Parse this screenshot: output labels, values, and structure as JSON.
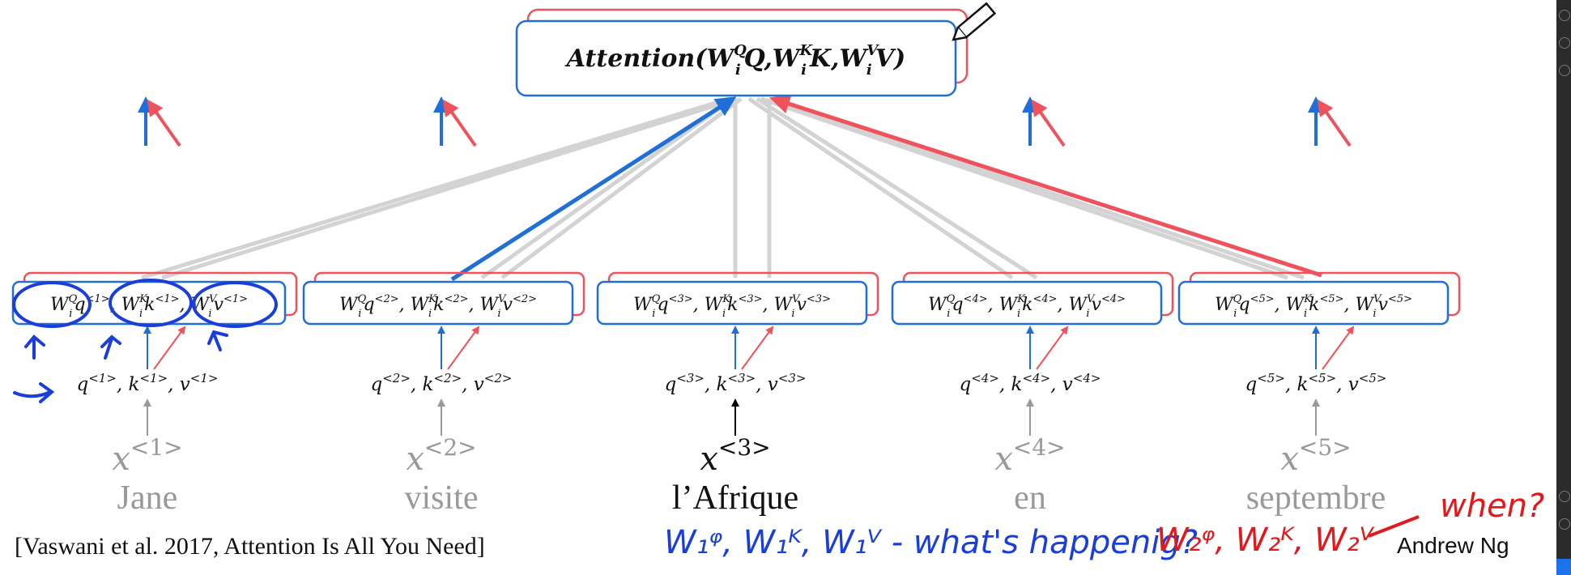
{
  "attention_box": {
    "prefix": "Attention(",
    "W": "W",
    "Q_sup": "Q",
    "K_sup": "K",
    "V_sup": "V",
    "i_sub": "i",
    "Q": "Q",
    "K": "K",
    "V": "V",
    "comma": ",",
    "suffix": ")"
  },
  "tokens": [
    {
      "idx": "1",
      "word": "Jane"
    },
    {
      "idx": "2",
      "word": "visite"
    },
    {
      "idx": "3",
      "word": "l’Afrique"
    },
    {
      "idx": "4",
      "word": "en"
    },
    {
      "idx": "5",
      "word": "septembre"
    }
  ],
  "letters": {
    "W": "W",
    "q": "q",
    "k": "k",
    "v": "v",
    "x": "x",
    "i": "i",
    "Q": "Q",
    "K": "K",
    "V": "V",
    "sep": ", "
  },
  "citation": "[Vaswani et al. 2017, Attention Is All You Need]",
  "author": "Andrew Ng",
  "handwriting": {
    "blue_note": "W₁ᵠ, W₁ᴷ, W₁ⱽ - what's happenig?",
    "red_note": "W₂ᵠ, W₂ᴷ, W₂ⱽ",
    "red_question": "when?"
  },
  "colors": {
    "blue": "#1f6fd6",
    "red": "#f0525c",
    "gray": "#d0d0d0",
    "ink_blue": "#1a3fd8",
    "ink_red": "#e4171b"
  }
}
